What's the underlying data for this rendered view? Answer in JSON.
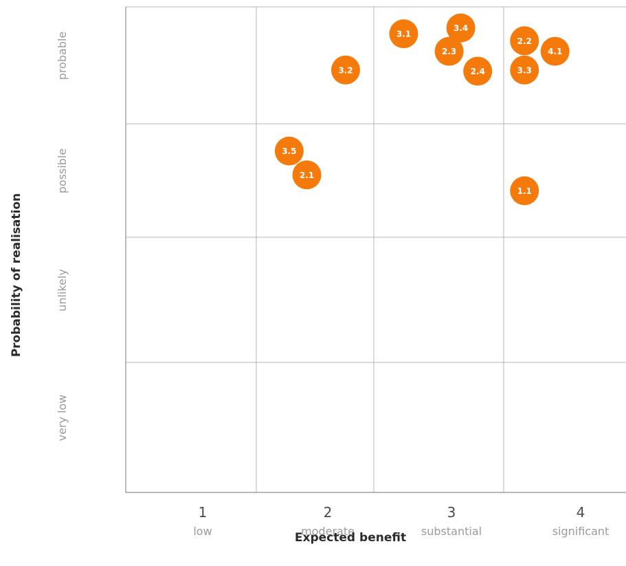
{
  "chart_data": {
    "type": "scatter",
    "xlabel": "Expected benefit",
    "ylabel": "Probability of realisation",
    "x_ticks": [
      {
        "value": 1,
        "number": "1",
        "label": "low"
      },
      {
        "value": 2,
        "number": "2",
        "label": "moderate"
      },
      {
        "value": 3,
        "number": "3",
        "label": "substantial"
      },
      {
        "value": 4,
        "number": "4",
        "label": "significant"
      }
    ],
    "y_categories": [
      "very low",
      "unlikely",
      "possible",
      "probable"
    ],
    "xlim": [
      0.5,
      4.5
    ],
    "ylim": [
      0.5,
      4.5
    ],
    "grid": true,
    "marker_color": "#f57a0c",
    "points": [
      {
        "label": "3.1",
        "x": 2.73,
        "y": 4.27
      },
      {
        "label": "3.4",
        "x": 3.17,
        "y": 4.32
      },
      {
        "label": "2.2",
        "x": 3.67,
        "y": 4.21
      },
      {
        "label": "4.1",
        "x": 3.92,
        "y": 4.12
      },
      {
        "label": "2.3",
        "x": 3.08,
        "y": 4.12
      },
      {
        "label": "3.2",
        "x": 2.26,
        "y": 3.96
      },
      {
        "label": "2.4",
        "x": 3.3,
        "y": 3.95
      },
      {
        "label": "3.3",
        "x": 3.67,
        "y": 3.96
      },
      {
        "label": "3.5",
        "x": 1.78,
        "y": 3.26
      },
      {
        "label": "2.1",
        "x": 1.93,
        "y": 3.05
      },
      {
        "label": "1.1",
        "x": 3.67,
        "y": 2.91
      }
    ]
  }
}
